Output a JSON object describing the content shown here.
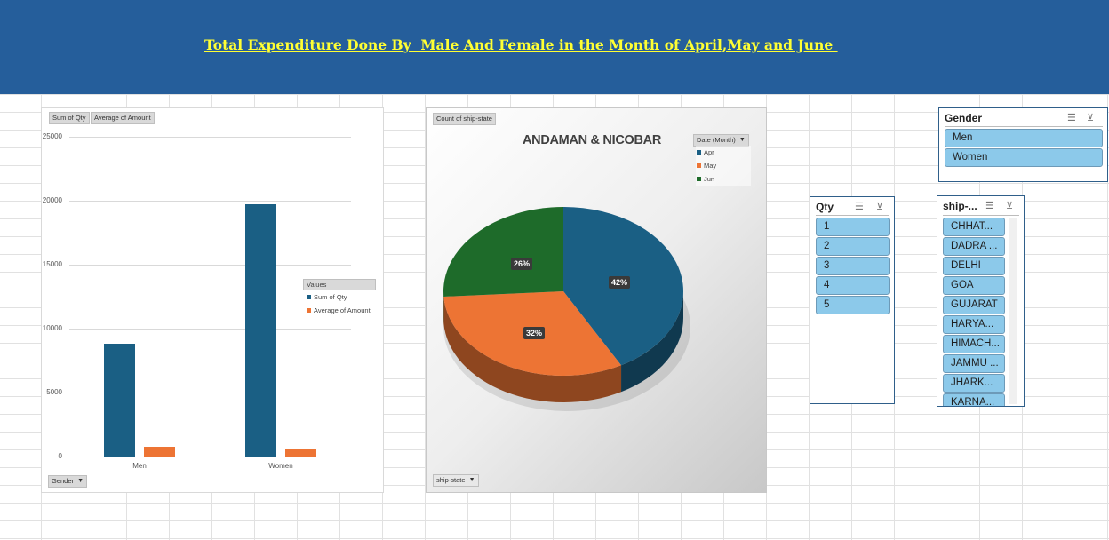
{
  "banner": {
    "title": "Total Expenditure Done By  Male And Female in the Month of April,May and June "
  },
  "colors": {
    "banner_bg": "#255e9b",
    "title_text": "#ffff33",
    "series_blue": "#1a5f84",
    "series_orange": "#ed7434",
    "series_green": "#1e6b2a",
    "slicer_item": "#8cc9ea"
  },
  "bar_chart": {
    "field_buttons": [
      "Sum of Qty",
      "Average of Amount"
    ],
    "axis_field_button": "Gender",
    "legend_title": "Values"
  },
  "pie_chart": {
    "filter_button": "Count of ship-state",
    "title": "ANDAMAN & NICOBAR",
    "legend_field": "Date (Month)",
    "axis_field_button": "ship-state"
  },
  "chart_data": [
    {
      "type": "bar",
      "categories": [
        "Men",
        "Women"
      ],
      "series": [
        {
          "name": "Sum of Qty",
          "values": [
            8800,
            19700
          ],
          "color": "#1a5f84"
        },
        {
          "name": "Average of Amount",
          "values": [
            730,
            610
          ],
          "color": "#ed7434"
        }
      ],
      "ylim": [
        0,
        25000
      ],
      "yticks": [
        0,
        5000,
        10000,
        15000,
        20000,
        25000
      ],
      "grid": true,
      "legend_position": "right"
    },
    {
      "type": "pie",
      "title": "ANDAMAN & NICOBAR",
      "slices": [
        {
          "label": "Apr",
          "value": 42,
          "display": "42%",
          "color": "#1a5f84"
        },
        {
          "label": "May",
          "value": 32,
          "display": "32%",
          "color": "#ed7434"
        },
        {
          "label": "Jun",
          "value": 26,
          "display": "26%",
          "color": "#1e6b2a"
        }
      ],
      "legend_position": "top-right"
    }
  ],
  "slicers": {
    "gender": {
      "title": "Gender",
      "items": [
        "Men",
        "Women"
      ]
    },
    "qty": {
      "title": "Qty",
      "items": [
        "1",
        "2",
        "3",
        "4",
        "5"
      ]
    },
    "ship_state": {
      "title": "ship-...",
      "items": [
        "CHHAT...",
        "DADRA ...",
        "DELHI",
        "GOA",
        "GUJARAT",
        "HARYA...",
        "HIMACH...",
        "JAMMU ...",
        "JHARK...",
        "KARNA..."
      ]
    }
  },
  "icons": [
    "multi-select-icon",
    "clear-filter-icon",
    "dropdown-arrow-icon"
  ]
}
